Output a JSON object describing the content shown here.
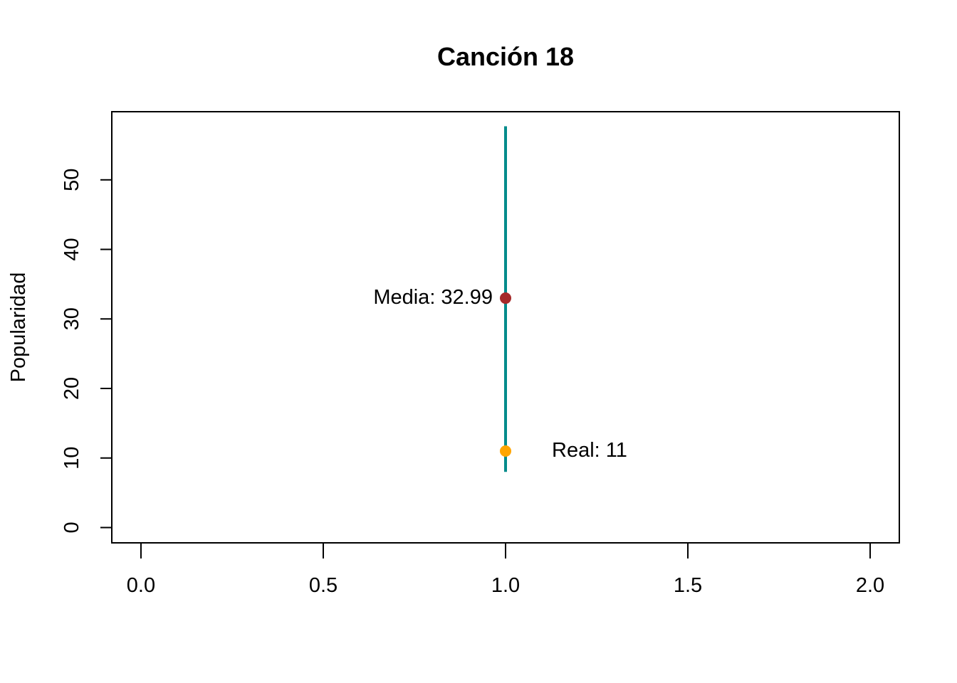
{
  "chart_data": {
    "type": "scatter",
    "title": "Canción 18",
    "xlabel": "",
    "ylabel": "Popularidad",
    "xlim": [
      -0.08,
      2.08
    ],
    "ylim": [
      -2.2,
      59.8
    ],
    "x_ticks": [
      0.0,
      0.5,
      1.0,
      1.5,
      2.0
    ],
    "x_tick_labels": [
      "0.0",
      "0.5",
      "1.0",
      "1.5",
      "2.0"
    ],
    "y_ticks": [
      0,
      10,
      20,
      30,
      40,
      50
    ],
    "y_tick_labels": [
      "0",
      "10",
      "20",
      "30",
      "40",
      "50"
    ],
    "grid": false,
    "interval": {
      "x": 1.0,
      "low": 8,
      "high": 57.7,
      "color": "#008B8B"
    },
    "points": [
      {
        "label": "Media: 32.99",
        "x": 1.0,
        "y": 32.99,
        "color": "#A52A2A",
        "label_side": "left"
      },
      {
        "label": "Real: 11",
        "x": 1.0,
        "y": 11,
        "color": "#FFA500",
        "label_side": "right"
      }
    ]
  }
}
